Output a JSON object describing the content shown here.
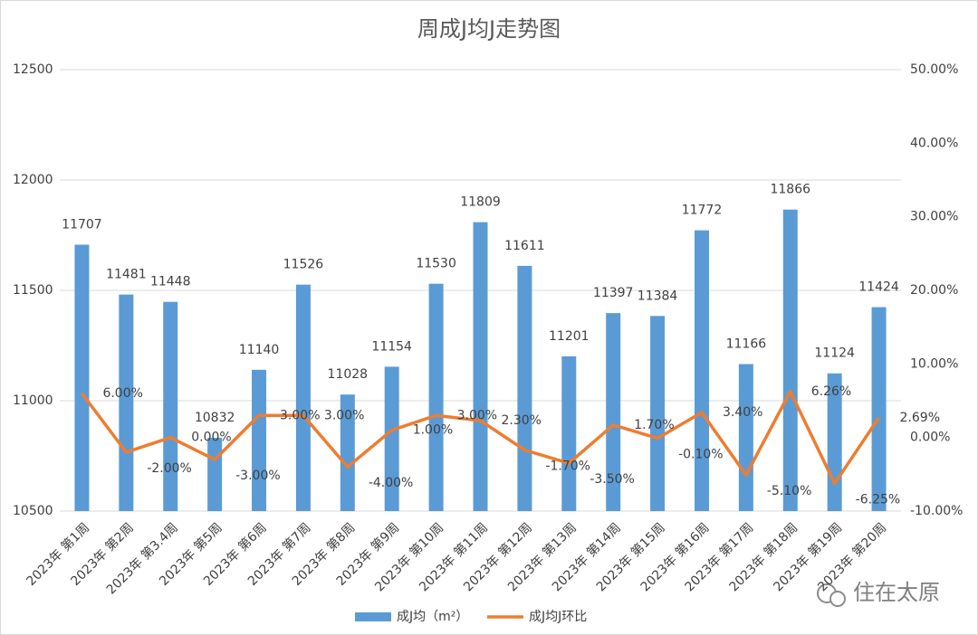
{
  "chart_data": {
    "type": "combo",
    "title": "周成J均J走势图",
    "categories": [
      "2023年 第1周",
      "2023年 第2周",
      "2023年 第3.4周",
      "2023年 第5周",
      "2023年 第6周",
      "2023年 第7周",
      "2023年 第8周",
      "2023年 第9周",
      "2023年 第10周",
      "2023年 第11周",
      "2023年 第12周",
      "2023年 第13周",
      "2023年 第14周",
      "2023年 第15周",
      "2023年 第16周",
      "2023年 第17周",
      "2023年 第18周",
      "2023年 第19周",
      "2023年 第20周"
    ],
    "series": [
      {
        "name": "成J均（m²）",
        "type": "bar",
        "color": "#5b9bd5",
        "values": [
          11707,
          11481,
          11448,
          10832,
          11140,
          11526,
          11028,
          11154,
          11530,
          11809,
          11611,
          11201,
          11397,
          11384,
          11772,
          11166,
          11866,
          11124,
          11424
        ]
      },
      {
        "name": "成J均J环比",
        "type": "line",
        "color": "#ed7d31",
        "axis": "y2",
        "values": [
          6,
          -2,
          0,
          -3,
          3,
          3,
          -4,
          1,
          3,
          2.3,
          -1.7,
          -3.5,
          1.7,
          -0.1,
          3.4,
          -5.1,
          6.26,
          -6.25,
          2.69
        ],
        "value_labels": [
          "6.00%",
          "-2.00%",
          "0.00%",
          "-3.00%",
          "3.00%",
          "3.00%",
          "-4.00%",
          "1.00%",
          "3.00%",
          "2.30%",
          "-1.70%",
          "-3.50%",
          "1.70%",
          "-0.10%",
          "3.40%",
          "-5.10%",
          "6.26%",
          "-6.25%",
          "2.69%"
        ]
      }
    ],
    "ylim": [
      10500,
      12500
    ],
    "yticks": [
      10500,
      11000,
      11500,
      12000,
      12500
    ],
    "y2lim": [
      -10,
      50
    ],
    "y2ticks": [
      {
        "value": -10,
        "label": "-10.00%"
      },
      {
        "value": 0,
        "label": "0.00%"
      },
      {
        "value": 10,
        "label": "10.00%"
      },
      {
        "value": 20,
        "label": "20.00%"
      },
      {
        "value": 30,
        "label": "30.00%"
      },
      {
        "value": 40,
        "label": "40.00%"
      },
      {
        "value": 50,
        "label": "50.00%"
      }
    ],
    "grid": true,
    "legend": "bottom",
    "watermark": "住在太原"
  }
}
